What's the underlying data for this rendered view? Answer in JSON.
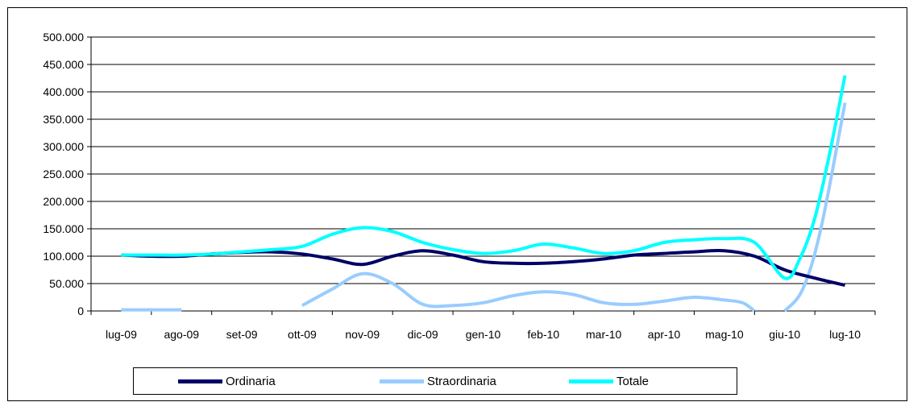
{
  "chart_data": {
    "type": "line",
    "title": "",
    "xlabel": "",
    "ylabel": "",
    "ylim": [
      0,
      500000
    ],
    "yticks": [
      "500.000",
      "450.000",
      "400.000",
      "350.000",
      "300.000",
      "250.000",
      "200.000",
      "150.000",
      "100.000",
      "50.000",
      "0"
    ],
    "categories": [
      "lug-09",
      "ago-09",
      "set-09",
      "ott-09",
      "nov-09",
      "dic-09",
      "gen-10",
      "feb-10",
      "mar-10",
      "apr-10",
      "mag-10",
      "giu-10",
      "lug-10"
    ],
    "grid": true,
    "legend_position": "bottom",
    "series": [
      {
        "name": "Ordinaria",
        "color": "#000066",
        "x": [
          0,
          0.5,
          1,
          1.5,
          2,
          2.5,
          3,
          3.5,
          4,
          4.5,
          5,
          5.5,
          6,
          6.5,
          7,
          7.5,
          8,
          8.5,
          9,
          9.5,
          10,
          10.5,
          11,
          11.5,
          12
        ],
        "values": [
          102000,
          100000,
          100000,
          104000,
          107000,
          108000,
          104000,
          95000,
          85000,
          100000,
          110000,
          102000,
          90000,
          87000,
          87000,
          90000,
          95000,
          102000,
          105000,
          108000,
          110000,
          100000,
          75000,
          60000,
          47000
        ]
      },
      {
        "name": "Straordinaria",
        "color": "#99CCFF",
        "segments": [
          {
            "x": [
              0,
              1
            ],
            "values": [
              2000,
              2000
            ]
          },
          {
            "x": [
              3,
              3.5,
              4,
              4.5,
              5,
              5.5,
              6,
              6.5,
              7,
              7.5,
              8,
              8.5,
              9,
              9.5,
              10,
              10.3,
              10.5
            ],
            "values": [
              10000,
              40000,
              68000,
              50000,
              12000,
              10000,
              15000,
              28000,
              35000,
              30000,
              15000,
              12000,
              18000,
              25000,
              20000,
              15000,
              0
            ]
          },
          {
            "x": [
              11,
              11.3,
              11.6,
              12
            ],
            "values": [
              0,
              40000,
              150000,
              380000
            ]
          }
        ]
      },
      {
        "name": "Totale",
        "color": "#00FFFF",
        "x": [
          0,
          0.5,
          1,
          1.5,
          2,
          2.5,
          3,
          3.5,
          4,
          4.5,
          5,
          5.5,
          6,
          6.5,
          7,
          7.5,
          8,
          8.5,
          9,
          9.5,
          10,
          10.5,
          11,
          11.25,
          11.5,
          11.75,
          12
        ],
        "values": [
          102000,
          102000,
          102000,
          104000,
          108000,
          112000,
          118000,
          140000,
          152000,
          145000,
          125000,
          112000,
          105000,
          110000,
          122000,
          115000,
          105000,
          110000,
          125000,
          130000,
          132000,
          125000,
          60000,
          95000,
          170000,
          290000,
          430000
        ]
      }
    ]
  }
}
